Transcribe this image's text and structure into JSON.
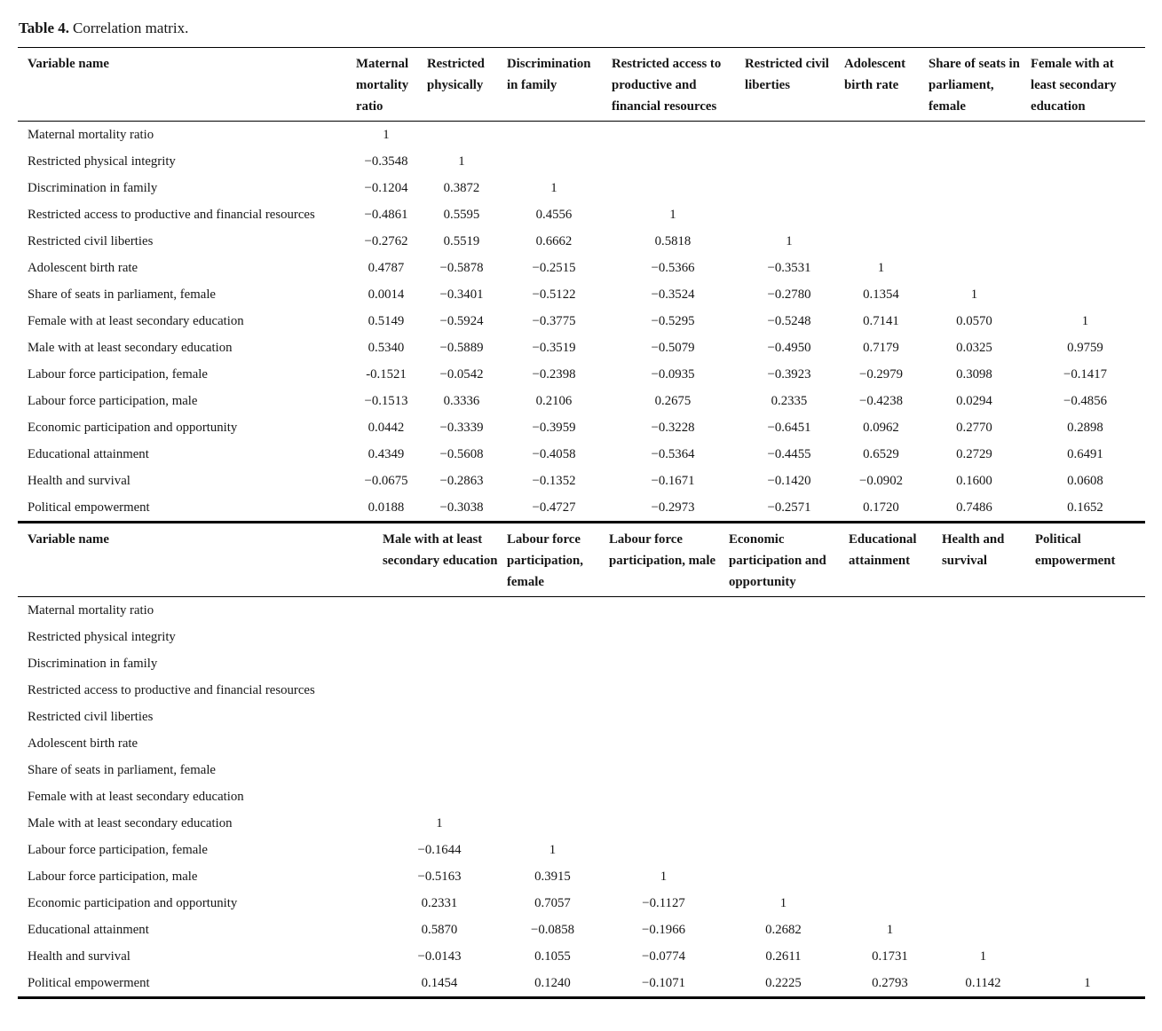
{
  "caption": {
    "label": "Table 4.",
    "text": "Correlation matrix."
  },
  "table1": {
    "header_label": "Variable name",
    "columns": [
      "Maternal mortality ratio",
      "Restricted physically",
      "Discrimination in family",
      "Restricted access to productive and financial resources",
      "Restricted civil liberties",
      "Adolescent birth rate",
      "Share of seats in parliament, female",
      "Female with at least secondary education"
    ],
    "rows": [
      {
        "label": "Maternal mortality ratio",
        "values": [
          "1",
          "",
          "",
          "",
          "",
          "",
          "",
          ""
        ]
      },
      {
        "label": "Restricted physical integrity",
        "values": [
          "−0.3548",
          "1",
          "",
          "",
          "",
          "",
          "",
          ""
        ]
      },
      {
        "label": "Discrimination in family",
        "values": [
          "−0.1204",
          "0.3872",
          "1",
          "",
          "",
          "",
          "",
          ""
        ]
      },
      {
        "label": "Restricted access to productive and financial resources",
        "values": [
          "−0.4861",
          "0.5595",
          "0.4556",
          "1",
          "",
          "",
          "",
          ""
        ]
      },
      {
        "label": "Restricted civil liberties",
        "values": [
          "−0.2762",
          "0.5519",
          "0.6662",
          "0.5818",
          "1",
          "",
          "",
          ""
        ]
      },
      {
        "label": "Adolescent birth rate",
        "values": [
          "0.4787",
          "−0.5878",
          "−0.2515",
          "−0.5366",
          "−0.3531",
          "1",
          "",
          ""
        ]
      },
      {
        "label": "Share of seats in parliament, female",
        "values": [
          "0.0014",
          "−0.3401",
          "−0.5122",
          "−0.3524",
          "−0.2780",
          "0.1354",
          "1",
          ""
        ]
      },
      {
        "label": "Female with at least secondary education",
        "values": [
          "0.5149",
          "−0.5924",
          "−0.3775",
          "−0.5295",
          "−0.5248",
          "0.7141",
          "0.0570",
          "1"
        ]
      },
      {
        "label": "Male with at least secondary education",
        "values": [
          "0.5340",
          "−0.5889",
          "−0.3519",
          "−0.5079",
          "−0.4950",
          "0.7179",
          "0.0325",
          "0.9759"
        ]
      },
      {
        "label": "Labour force participation, female",
        "values": [
          "-0.1521",
          "−0.0542",
          "−0.2398",
          "−0.0935",
          "−0.3923",
          "−0.2979",
          "0.3098",
          "−0.1417"
        ]
      },
      {
        "label": "Labour force participation, male",
        "values": [
          "−0.1513",
          "0.3336",
          "0.2106",
          "0.2675",
          "0.2335",
          "−0.4238",
          "0.0294",
          "−0.4856"
        ]
      },
      {
        "label": "Economic participation and opportunity",
        "values": [
          "0.0442",
          "−0.3339",
          "−0.3959",
          "−0.3228",
          "−0.6451",
          "0.0962",
          "0.2770",
          "0.2898"
        ]
      },
      {
        "label": "Educational attainment",
        "values": [
          "0.4349",
          "−0.5608",
          "−0.4058",
          "−0.5364",
          "−0.4455",
          "0.6529",
          "0.2729",
          "0.6491"
        ]
      },
      {
        "label": "Health and survival",
        "values": [
          "−0.0675",
          "−0.2863",
          "−0.1352",
          "−0.1671",
          "−0.1420",
          "−0.0902",
          "0.1600",
          "0.0608"
        ]
      },
      {
        "label": "Political empowerment",
        "values": [
          "0.0188",
          "−0.3038",
          "−0.4727",
          "−0.2973",
          "−0.2571",
          "0.1720",
          "0.7486",
          "0.1652"
        ]
      }
    ]
  },
  "table2": {
    "header_label": "Variable name",
    "columns": [
      "Male with at least secondary education",
      "Labour force participation, female",
      "Labour force participation, male",
      "Economic participation and opportunity",
      "Educational attainment",
      "Health and survival",
      "Political empowerment"
    ],
    "rows": [
      {
        "label": "Maternal mortality ratio",
        "values": [
          "",
          "",
          "",
          "",
          "",
          "",
          ""
        ]
      },
      {
        "label": "Restricted physical integrity",
        "values": [
          "",
          "",
          "",
          "",
          "",
          "",
          ""
        ]
      },
      {
        "label": "Discrimination in family",
        "values": [
          "",
          "",
          "",
          "",
          "",
          "",
          ""
        ]
      },
      {
        "label": "Restricted access to productive and financial resources",
        "values": [
          "",
          "",
          "",
          "",
          "",
          "",
          ""
        ]
      },
      {
        "label": "Restricted civil liberties",
        "values": [
          "",
          "",
          "",
          "",
          "",
          "",
          ""
        ]
      },
      {
        "label": "Adolescent birth rate",
        "values": [
          "",
          "",
          "",
          "",
          "",
          "",
          ""
        ]
      },
      {
        "label": "Share of seats in parliament, female",
        "values": [
          "",
          "",
          "",
          "",
          "",
          "",
          ""
        ]
      },
      {
        "label": "Female with at least secondary education",
        "values": [
          "",
          "",
          "",
          "",
          "",
          "",
          ""
        ]
      },
      {
        "label": "Male with at least secondary education",
        "values": [
          "1",
          "",
          "",
          "",
          "",
          "",
          ""
        ]
      },
      {
        "label": "Labour force participation, female",
        "values": [
          "−0.1644",
          "1",
          "",
          "",
          "",
          "",
          ""
        ]
      },
      {
        "label": "Labour force participation, male",
        "values": [
          "−0.5163",
          "0.3915",
          "1",
          "",
          "",
          "",
          ""
        ]
      },
      {
        "label": "Economic participation and opportunity",
        "values": [
          "0.2331",
          "0.7057",
          "−0.1127",
          "1",
          "",
          "",
          ""
        ]
      },
      {
        "label": "Educational attainment",
        "values": [
          "0.5870",
          "−0.0858",
          "−0.1966",
          "0.2682",
          "1",
          "",
          ""
        ]
      },
      {
        "label": "Health and survival",
        "values": [
          "−0.0143",
          "0.1055",
          "−0.0774",
          "0.2611",
          "0.1731",
          "1",
          ""
        ]
      },
      {
        "label": "Political empowerment",
        "values": [
          "0.1454",
          "0.1240",
          "−0.1071",
          "0.2225",
          "0.2793",
          "0.1142",
          "1"
        ]
      }
    ]
  }
}
